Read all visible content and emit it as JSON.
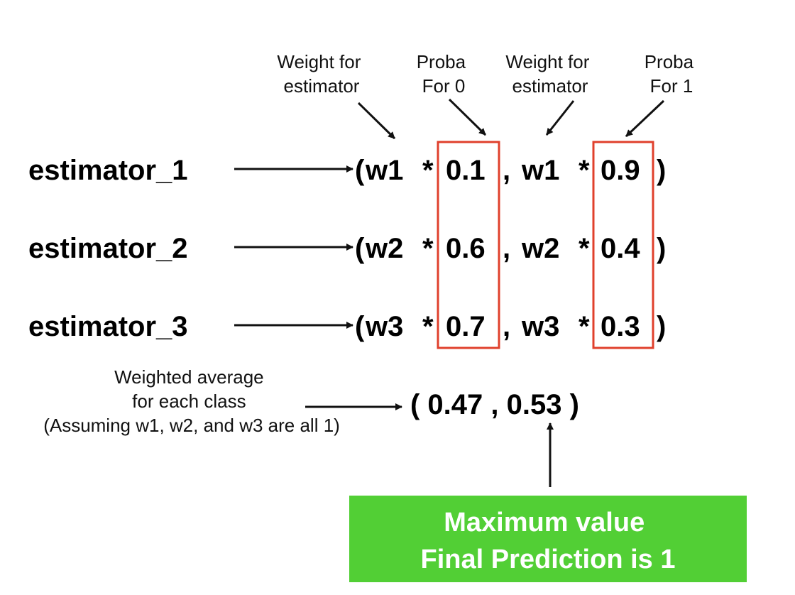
{
  "annotations": {
    "weight_for_estimator_1": [
      "Weight for",
      "estimator"
    ],
    "proba_for_0": [
      "Proba",
      "For 0"
    ],
    "weight_for_estimator_2": [
      "Weight for",
      "estimator"
    ],
    "proba_for_1": [
      "Proba",
      "For 1"
    ]
  },
  "estimators": [
    {
      "label": "estimator_1",
      "weight": "w1",
      "proba_0": "0.1",
      "proba_1": "0.9"
    },
    {
      "label": "estimator_2",
      "weight": "w2",
      "proba_0": "0.6",
      "proba_1": "0.4"
    },
    {
      "label": "estimator_3",
      "weight": "w3",
      "proba_0": "0.7",
      "proba_1": "0.3"
    }
  ],
  "expression_parts": {
    "open_paren": "(",
    "multiply": "*",
    "comma": ",",
    "close_paren": ")"
  },
  "weighted_average": {
    "label_lines": [
      "Weighted average",
      "for each class",
      "(Assuming w1, w2, and w3 are all 1)"
    ],
    "result_text": "( 0.47 , 0.53 )"
  },
  "final_box": {
    "lines": [
      "Maximum value",
      "Final Prediction is 1"
    ]
  },
  "colors": {
    "highlight_border": "#e0402c",
    "final_box_fill": "#52cf35",
    "arrow": "#111111"
  }
}
